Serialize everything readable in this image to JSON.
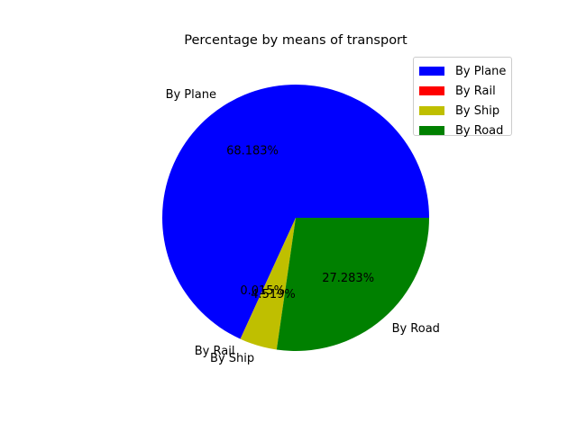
{
  "chart_data": {
    "type": "pie",
    "title": "Percentage by means of transport",
    "slices": [
      {
        "label": "By Plane",
        "value": 68.183,
        "pct_label": "68.183%",
        "color": "#0000ff"
      },
      {
        "label": "By Rail",
        "value": 0.015,
        "pct_label": "0.015%",
        "color": "#ff0000"
      },
      {
        "label": "By Ship",
        "value": 4.519,
        "pct_label": "4.519%",
        "color": "#bfbf00"
      },
      {
        "label": "By Road",
        "value": 27.283,
        "pct_label": "27.283%",
        "color": "#008000"
      }
    ],
    "legend": {
      "placement": "upper-right",
      "entries": [
        "By Plane",
        "By Rail",
        "By Ship",
        "By Road"
      ]
    }
  }
}
